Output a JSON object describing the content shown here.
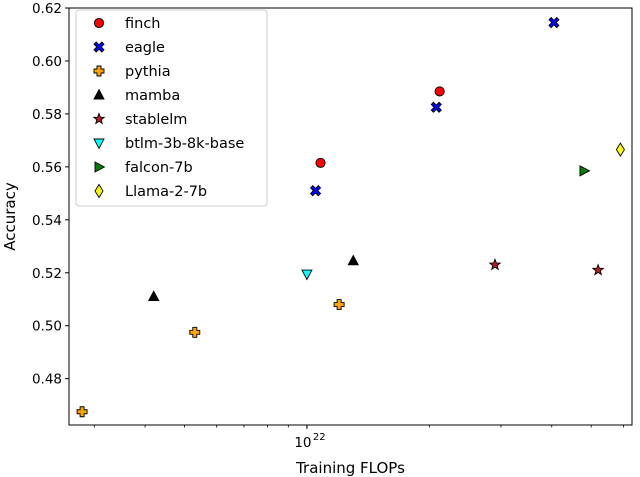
{
  "chart_data": {
    "type": "scatter",
    "title": "",
    "xlabel": "Training FLOPs",
    "ylabel": "Accuracy",
    "x_scale": "log",
    "xlim": [
      2.6e+21,
      6.3e+22
    ],
    "ylim": [
      0.4625,
      0.62
    ],
    "x_ticks": [
      {
        "value": 1e+22,
        "label": "10",
        "exponent": "22"
      }
    ],
    "y_ticks": [
      {
        "value": 0.48,
        "label": "0.48"
      },
      {
        "value": 0.5,
        "label": "0.50"
      },
      {
        "value": 0.52,
        "label": "0.52"
      },
      {
        "value": 0.54,
        "label": "0.54"
      },
      {
        "value": 0.56,
        "label": "0.56"
      },
      {
        "value": 0.58,
        "label": "0.58"
      },
      {
        "value": 0.6,
        "label": "0.60"
      },
      {
        "value": 0.62,
        "label": "0.62"
      }
    ],
    "grid": false,
    "legend_position": "top-left",
    "series": [
      {
        "name": "finch",
        "marker": "circle",
        "color": "#ff0000",
        "points": [
          {
            "x": 1.08e+22,
            "y": 0.5615
          },
          {
            "x": 2.12e+22,
            "y": 0.5885
          }
        ]
      },
      {
        "name": "eagle",
        "marker": "x",
        "color": "#0000ff",
        "points": [
          {
            "x": 1.05e+22,
            "y": 0.551
          },
          {
            "x": 2.08e+22,
            "y": 0.5825
          },
          {
            "x": 4.05e+22,
            "y": 0.6145
          }
        ]
      },
      {
        "name": "pythia",
        "marker": "plus",
        "color": "#ffa500",
        "points": [
          {
            "x": 2.8e+21,
            "y": 0.4675
          },
          {
            "x": 5.3e+21,
            "y": 0.4975
          },
          {
            "x": 1.2e+22,
            "y": 0.508
          }
        ]
      },
      {
        "name": "mamba",
        "marker": "triangle-up",
        "color": "#000000",
        "points": [
          {
            "x": 4.2e+21,
            "y": 0.511
          },
          {
            "x": 1.3e+22,
            "y": 0.5245
          }
        ]
      },
      {
        "name": "stablelm",
        "marker": "star",
        "color": "#b22222",
        "points": [
          {
            "x": 2.9e+22,
            "y": 0.523
          },
          {
            "x": 5.2e+22,
            "y": 0.521
          }
        ]
      },
      {
        "name": "btlm-3b-8k-base",
        "marker": "triangle-down",
        "color": "#00ffff",
        "points": [
          {
            "x": 1e+22,
            "y": 0.5195
          }
        ]
      },
      {
        "name": "falcon-7b",
        "marker": "triangle-right",
        "color": "#008000",
        "points": [
          {
            "x": 4.8e+22,
            "y": 0.5585
          }
        ]
      },
      {
        "name": "Llama-2-7b",
        "marker": "diamond",
        "color": "#ffff00",
        "points": [
          {
            "x": 5.9e+22,
            "y": 0.5665
          }
        ]
      }
    ]
  }
}
